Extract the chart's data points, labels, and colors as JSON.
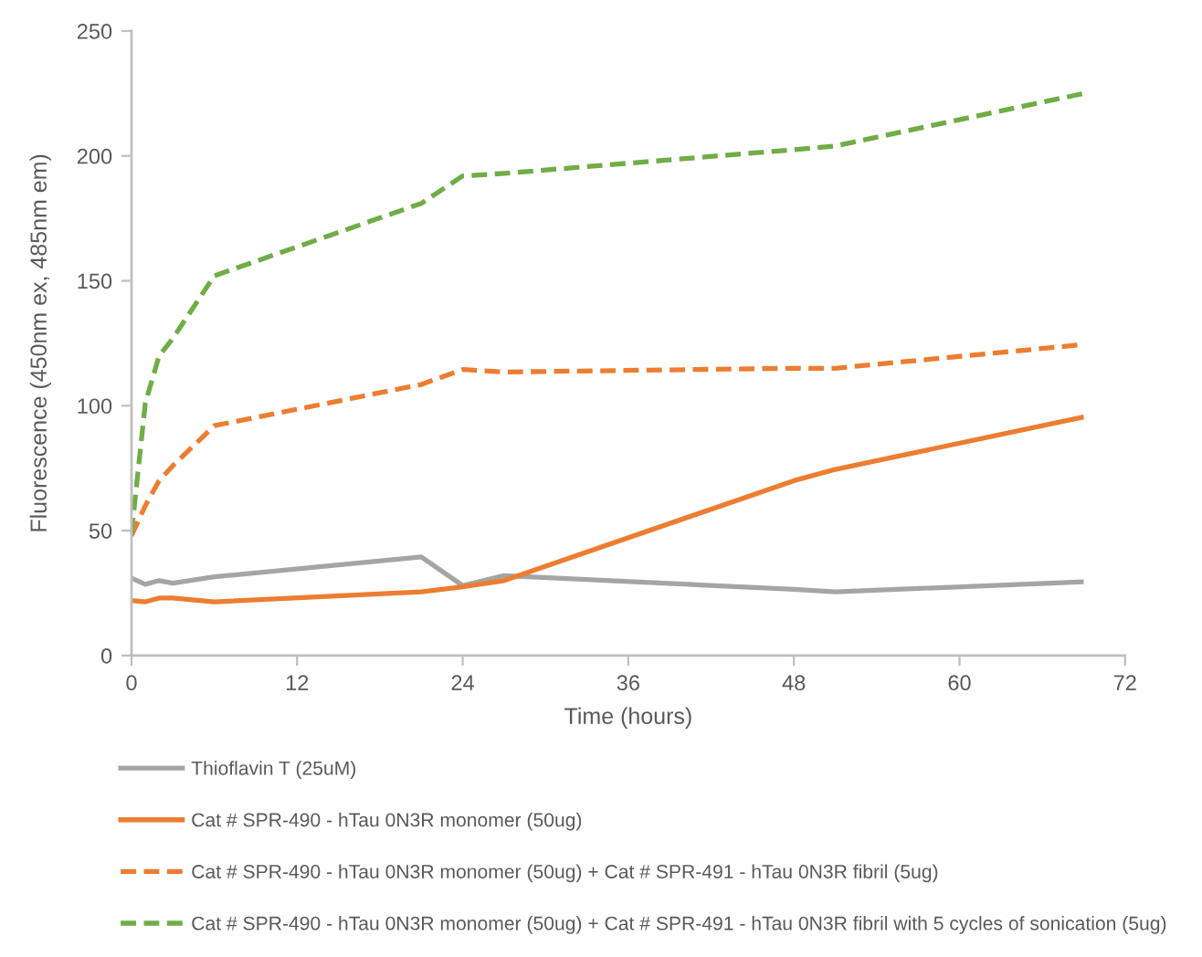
{
  "chart_data": {
    "type": "line",
    "xlabel": "Time (hours)",
    "ylabel": "Fluorescence (450nm ex, 485nm em)",
    "x": [
      0,
      1,
      2,
      3,
      6,
      21,
      24,
      27,
      48,
      51,
      69
    ],
    "xlim": [
      0,
      72
    ],
    "xticks": [
      0,
      12,
      24,
      36,
      48,
      60,
      72
    ],
    "ylim": [
      0,
      250
    ],
    "yticks": [
      0,
      50,
      100,
      150,
      200,
      250
    ],
    "legend": "bottom",
    "series": [
      {
        "name": "Thioflavin T (25uM)",
        "color": "#a5a5a5",
        "line_style": "solid",
        "values": [
          31,
          28.5,
          30,
          29,
          31.5,
          39.5,
          28,
          32,
          26.5,
          25.5,
          29.5
        ]
      },
      {
        "name": "Cat # SPR-490 - hTau 0N3R monomer (50ug)",
        "color": "#ed7d31",
        "line_style": "solid",
        "values": [
          22,
          21.5,
          23,
          23,
          21.5,
          25.5,
          27.5,
          30,
          70,
          74.5,
          95.5
        ]
      },
      {
        "name": "Cat # SPR-490 - hTau 0N3R monomer (50ug) + Cat # SPR-491 - hTau 0N3R fibril (5ug)",
        "color": "#ed7d31",
        "line_style": "dashed",
        "values": [
          48,
          60,
          70,
          76,
          92,
          108.5,
          114.5,
          113.5,
          115,
          115,
          124.5
        ]
      },
      {
        "name": "Cat # SPR-490 - hTau 0N3R monomer (50ug) + Cat # SPR-491 - hTau 0N3R fibril with 5 cycles of sonication (5ug)",
        "color": "#70ad47",
        "line_style": "dashed",
        "values": [
          49,
          101,
          120,
          127,
          152,
          181,
          192,
          193,
          202.5,
          204,
          225
        ]
      }
    ]
  }
}
